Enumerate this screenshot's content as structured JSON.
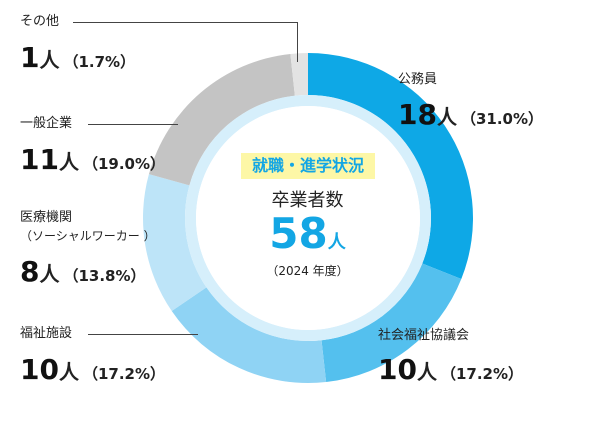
{
  "chart_data": {
    "type": "pie",
    "center": {
      "title": "就職・進学状況",
      "label": "卒業者数",
      "value": "58",
      "unit": "人",
      "year": "（2024 年度）"
    },
    "slices": [
      {
        "name": "公務員",
        "count": 18,
        "unit": "人",
        "percent": "（31.0%）",
        "value": 31.0,
        "color": "#0ea8e6"
      },
      {
        "name": "社会福祉協議会",
        "count": 10,
        "unit": "人",
        "percent": "（17.2%）",
        "value": 17.2,
        "color": "#54c0ee"
      },
      {
        "name": "福祉施設",
        "count": 10,
        "unit": "人",
        "percent": "（17.2%）",
        "value": 17.2,
        "color": "#8fd3f4"
      },
      {
        "name": "医療機関",
        "name2": "（ソーシャルワーカー ）",
        "count": 8,
        "unit": "人",
        "percent": "（13.8%）",
        "value": 13.8,
        "color": "#bde4f8"
      },
      {
        "name": "一般企業",
        "count": 11,
        "unit": "人",
        "percent": "（19.0%）",
        "value": 19.0,
        "color": "#c4c4c4"
      },
      {
        "name": "その他",
        "count": 1,
        "unit": "人",
        "percent": "（1.7%）",
        "value": 1.7,
        "color": "#e3e3e3"
      }
    ]
  }
}
